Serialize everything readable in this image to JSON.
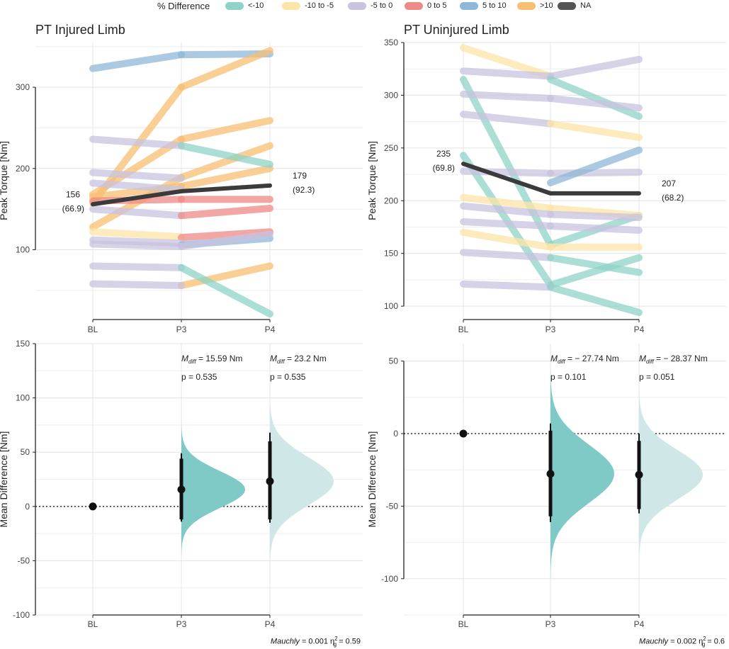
{
  "legend": {
    "title": "% Difference",
    "items": [
      {
        "label": "<-10",
        "color": "#8fd3c8"
      },
      {
        "label": "-10 to -5",
        "color": "#fde5a8"
      },
      {
        "label": "-5 to 0",
        "color": "#c9c3e0"
      },
      {
        "label": "0 to 5",
        "color": "#f08a86"
      },
      {
        "label": "5 to 10",
        "color": "#8fb8d8"
      },
      {
        "label": ">10",
        "color": "#f7bf72"
      },
      {
        "label": "NA",
        "color": "#555555"
      }
    ]
  },
  "chart_data": [
    {
      "id": "injured-lines",
      "type": "line",
      "title": "PT Injured Limb",
      "xlabel": "",
      "ylabel": "Peak Torque [Nm]",
      "categories": [
        "BL",
        "P3",
        "P4"
      ],
      "ylim": [
        15,
        355
      ],
      "yticks": [
        100,
        200,
        300
      ],
      "series": [
        {
          "name": "s1",
          "group": "5 to 10",
          "values": [
            323,
            340,
            341
          ]
        },
        {
          "name": "s2",
          "group": ">10",
          "values": [
            157,
            300,
            345
          ]
        },
        {
          "name": "s3",
          "group": ">10",
          "values": [
            168,
            236,
            259
          ]
        },
        {
          "name": "s4",
          "group": ">10",
          "values": [
            128,
            189,
            228
          ]
        },
        {
          "name": "s5",
          "group": ">10",
          "values": [
            165,
            178,
            200
          ]
        },
        {
          "name": "s6",
          "group": ">10",
          "values": [
            null,
            56,
            80
          ]
        },
        {
          "name": "s7",
          "group": "-5 to 0",
          "values": [
            236,
            228,
            null
          ]
        },
        {
          "name": "s8",
          "group": "<-10",
          "values": [
            null,
            228,
            205
          ]
        },
        {
          "name": "s9",
          "group": "-5 to 0",
          "values": [
            195,
            188,
            null
          ]
        },
        {
          "name": "s10",
          "group": "-5 to 0",
          "values": [
            182,
            174,
            null
          ]
        },
        {
          "name": "s11",
          "group": "0 to 5",
          "values": [
            160,
            162,
            162
          ]
        },
        {
          "name": "s12",
          "group": "-5 to 0",
          "values": [
            150,
            142,
            null
          ]
        },
        {
          "name": "s13",
          "group": "0 to 5",
          "values": [
            null,
            142,
            151
          ]
        },
        {
          "name": "s14",
          "group": "-10 to -5",
          "values": [
            122,
            116,
            null
          ]
        },
        {
          "name": "s15",
          "group": "0 to 5",
          "values": [
            null,
            115,
            122
          ]
        },
        {
          "name": "s16",
          "group": "-5 to 0",
          "values": [
            112,
            108,
            null
          ]
        },
        {
          "name": "s17",
          "group": "5 to 10",
          "values": [
            null,
            106,
            114
          ]
        },
        {
          "name": "s18",
          "group": "-5 to 0",
          "values": [
            107,
            104,
            119
          ]
        },
        {
          "name": "s19",
          "group": "-5 to 0",
          "values": [
            80,
            78,
            null
          ]
        },
        {
          "name": "s20",
          "group": "<-10",
          "values": [
            null,
            78,
            21
          ]
        },
        {
          "name": "s21",
          "group": "-5 to 0",
          "values": [
            58,
            56,
            null
          ]
        },
        {
          "name": "mean",
          "group": "NA",
          "values": [
            156,
            172,
            179
          ]
        }
      ],
      "annotations": [
        {
          "at": "BL",
          "value": "156",
          "sub": "(66.9)"
        },
        {
          "at": "P4",
          "value": "179",
          "sub": "(92.3)"
        }
      ]
    },
    {
      "id": "uninjured-lines",
      "type": "line",
      "title": "PT Uninjured Limb",
      "xlabel": "",
      "ylabel": "Peak Torque [Nm]",
      "categories": [
        "BL",
        "P3",
        "P4"
      ],
      "ylim": [
        88,
        350
      ],
      "yticks": [
        100,
        150,
        200,
        250,
        300,
        350
      ],
      "series": [
        {
          "name": "u1",
          "group": "-10 to -5",
          "values": [
            345,
            318,
            null
          ]
        },
        {
          "name": "u2",
          "group": "-5 to 0",
          "values": [
            323,
            318,
            334
          ]
        },
        {
          "name": "u3",
          "group": "<-10",
          "values": [
            315,
            158,
            186
          ]
        },
        {
          "name": "u4",
          "group": "<-10",
          "values": [
            null,
            315,
            280
          ]
        },
        {
          "name": "u5",
          "group": "-5 to 0",
          "values": [
            301,
            297,
            288
          ]
        },
        {
          "name": "u6",
          "group": "-5 to 0",
          "values": [
            282,
            273,
            null
          ]
        },
        {
          "name": "u7",
          "group": "-10 to -5",
          "values": [
            null,
            273,
            260
          ]
        },
        {
          "name": "u8",
          "group": "<-10",
          "values": [
            243,
            120,
            146
          ]
        },
        {
          "name": "u9",
          "group": "-5 to 0",
          "values": [
            228,
            226,
            227
          ]
        },
        {
          "name": "u10",
          "group": "5 to 10",
          "values": [
            null,
            217,
            248
          ]
        },
        {
          "name": "u11",
          "group": "-10 to -5",
          "values": [
            203,
            193,
            186
          ]
        },
        {
          "name": "u12",
          "group": "-5 to 0",
          "values": [
            195,
            187,
            184
          ]
        },
        {
          "name": "u13",
          "group": "-5 to 0",
          "values": [
            180,
            176,
            172
          ]
        },
        {
          "name": "u14",
          "group": "-10 to -5",
          "values": [
            170,
            156,
            156
          ]
        },
        {
          "name": "u15",
          "group": "-5 to 0",
          "values": [
            151,
            146,
            null
          ]
        },
        {
          "name": "u16",
          "group": "<-10",
          "values": [
            null,
            146,
            132
          ]
        },
        {
          "name": "u17",
          "group": "-5 to 0",
          "values": [
            121,
            118,
            null
          ]
        },
        {
          "name": "u18",
          "group": "<-10",
          "values": [
            null,
            118,
            94
          ]
        },
        {
          "name": "mean",
          "group": "NA",
          "values": [
            235,
            207,
            207
          ]
        }
      ],
      "annotations": [
        {
          "at": "BL",
          "value": "235",
          "sub": "(69.8)"
        },
        {
          "at": "P4",
          "value": "207",
          "sub": "(68.2)"
        }
      ]
    },
    {
      "id": "injured-diff",
      "type": "scatter",
      "title": "",
      "xlabel": "",
      "ylabel": "Mean Difference [Nm]",
      "categories": [
        "BL",
        "P3",
        "P4"
      ],
      "ylim": [
        -100,
        150
      ],
      "yticks": [
        -100,
        -50,
        0,
        50,
        100,
        150
      ],
      "points": [
        {
          "x": "BL",
          "mean": 0,
          "ci_inner": null,
          "ci_outer": null
        },
        {
          "x": "P3",
          "mean": 15.59,
          "ci_inner": [
            -12,
            44
          ],
          "ci_outer": [
            -14,
            49
          ],
          "dist_sd": 17,
          "dist_color": "#7fcac6"
        },
        {
          "x": "P4",
          "mean": 23.2,
          "ci_inner": [
            -12,
            60
          ],
          "ci_outer": [
            -15,
            68
          ],
          "dist_sd": 22,
          "dist_color": "#cfe7e6"
        }
      ],
      "stats": [
        {
          "at": "P3",
          "m_label": "M",
          "m_sub": "diff",
          "m_value": " = 15.59 Nm",
          "p": "p = 0.535"
        },
        {
          "at": "P4",
          "m_label": "M",
          "m_sub": "diff",
          "m_value": " = 23.2 Nm",
          "p": "p = 0.535"
        }
      ],
      "footnote": {
        "mauchly_label": "Mauchly",
        "mauchly_value": " = 0.001 ",
        "eta": "η",
        "eta_sup": "2",
        "eta_sub": "g",
        "eta_value": " = 0.59"
      }
    },
    {
      "id": "uninjured-diff",
      "type": "scatter",
      "title": "",
      "xlabel": "",
      "ylabel": "Mean Difference [Nm]",
      "categories": [
        "BL",
        "P3",
        "P4"
      ],
      "ylim": [
        -125,
        62
      ],
      "yticks": [
        -100,
        -50,
        0,
        50
      ],
      "points": [
        {
          "x": "BL",
          "mean": 0,
          "ci_inner": null,
          "ci_outer": null
        },
        {
          "x": "P3",
          "mean": -27.74,
          "ci_inner": [
            -57,
            2
          ],
          "ci_outer": [
            -61,
            7
          ],
          "dist_sd": 20,
          "dist_color": "#7fcac6"
        },
        {
          "x": "P4",
          "mean": -28.37,
          "ci_inner": [
            -52,
            -5
          ],
          "ci_outer": [
            -55,
            0
          ],
          "dist_sd": 17,
          "dist_color": "#cfe7e6"
        }
      ],
      "stats": [
        {
          "at": "P3",
          "m_label": "M",
          "m_sub": "diff",
          "m_value": " = − 27.74 Nm",
          "p": "p = 0.101"
        },
        {
          "at": "P4",
          "m_label": "M",
          "m_sub": "diff",
          "m_value": " = − 28.37 Nm",
          "p": "p = 0.051"
        }
      ],
      "footnote": {
        "mauchly_label": "Mauchly",
        "mauchly_value": " = 0.002 ",
        "eta": "η",
        "eta_sup": "2",
        "eta_sub": "g",
        "eta_value": " = 0.6"
      }
    }
  ]
}
